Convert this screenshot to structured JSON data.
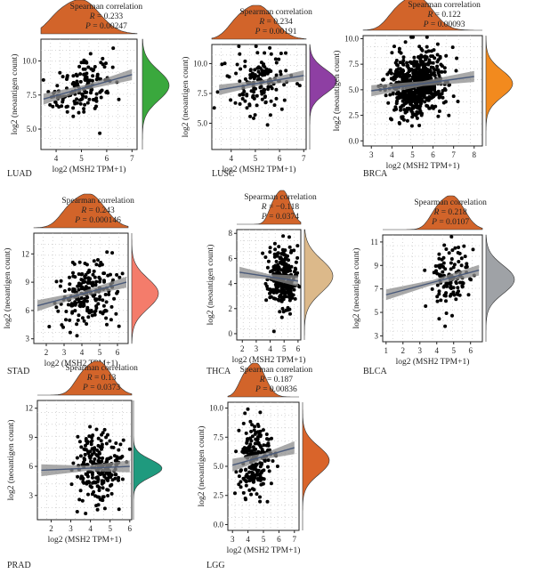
{
  "figure": {
    "stat_heading": "Spearman correlation",
    "r_prefix": "R = ",
    "p_prefix": "P = ",
    "x_axis_label": "log2 (MSH2 TPM+1)",
    "y_axis_label": "log2 (neoantigen count)"
  },
  "colors": {
    "top_density": "#d2642a",
    "scatter_point": "#000000",
    "regression_line": "#4a5a7a",
    "confidence_band": "#8c8c8c"
  },
  "chart_data": [
    {
      "type": "scatter",
      "panel_label": "LUAD",
      "R": "0.233",
      "P": "0.00247",
      "xlim": [
        3.4,
        7.2
      ],
      "ylim": [
        3.5,
        11.6
      ],
      "xticks": [
        4,
        5,
        6,
        7
      ],
      "yticks": [
        5.0,
        7.5,
        10.0
      ],
      "ytick_labels": [
        "5.0",
        "7.5",
        "10.0"
      ],
      "n_points": 160,
      "x_center": 5.0,
      "x_spread": 0.65,
      "regression": {
        "x": [
          3.5,
          7.0
        ],
        "y": [
          7.2,
          9.0
        ]
      },
      "right_density_color": "#3aa83d",
      "right_density_center": 8.2,
      "right_density_sd": 1.1
    },
    {
      "type": "scatter",
      "panel_label": "LUSC",
      "R": "0.234",
      "P": "0.00191",
      "xlim": [
        3.2,
        7.1
      ],
      "ylim": [
        2.8,
        11.6
      ],
      "xticks": [
        4,
        5,
        6,
        7
      ],
      "yticks": [
        5.0,
        7.5,
        10.0
      ],
      "ytick_labels": [
        "5.0",
        "7.5",
        "10.0"
      ],
      "n_points": 140,
      "x_center": 5.1,
      "x_spread": 0.6,
      "regression": {
        "x": [
          3.5,
          7.0
        ],
        "y": [
          7.8,
          9.0
        ]
      },
      "right_density_color": "#8e3fa3",
      "right_density_center": 8.5,
      "right_density_sd": 1.0
    },
    {
      "type": "scatter",
      "panel_label": "BRCA",
      "R": "0.122",
      "P": "0.00093",
      "xlim": [
        2.6,
        8.4
      ],
      "ylim": [
        -0.5,
        10.3
      ],
      "xticks": [
        3,
        4,
        5,
        6,
        7,
        8
      ],
      "yticks": [
        0.0,
        2.5,
        5.0,
        7.5,
        10.0
      ],
      "ytick_labels": [
        "0.0",
        "2.5",
        "5.0",
        "7.5",
        "10.0"
      ],
      "n_points": 650,
      "x_center": 5.2,
      "x_spread": 0.7,
      "regression": {
        "x": [
          3.0,
          8.0
        ],
        "y": [
          4.9,
          6.3
        ]
      },
      "right_density_color": "#f28a1e",
      "right_density_center": 5.6,
      "right_density_sd": 1.3
    },
    {
      "type": "scatter",
      "panel_label": "STAD",
      "R": "0.243",
      "P": "0.000146",
      "xlim": [
        1.3,
        6.6
      ],
      "ylim": [
        2.5,
        14.2
      ],
      "xticks": [
        2,
        3,
        4,
        5,
        6
      ],
      "yticks": [
        3,
        6,
        9,
        12
      ],
      "ytick_labels": [
        "3",
        "6",
        "9",
        "12"
      ],
      "n_points": 210,
      "x_center": 4.4,
      "x_spread": 0.8,
      "regression": {
        "x": [
          1.5,
          6.5
        ],
        "y": [
          6.5,
          9.0
        ]
      },
      "right_density_color": "#f47c6b",
      "right_density_center": 7.8,
      "right_density_sd": 1.6
    },
    {
      "type": "scatter",
      "panel_label": "THCA",
      "R": "−0.118",
      "P": "0.0374",
      "xlim": [
        1.6,
        6.2
      ],
      "ylim": [
        -0.5,
        8.3
      ],
      "xticks": [
        2,
        3,
        4,
        5,
        6
      ],
      "yticks": [
        0,
        2,
        4,
        6,
        8
      ],
      "ytick_labels": [
        "0",
        "2",
        "4",
        "6",
        "8"
      ],
      "n_points": 260,
      "x_center": 4.9,
      "x_spread": 0.5,
      "regression": {
        "x": [
          1.8,
          6.0
        ],
        "y": [
          4.9,
          4.2
        ]
      },
      "right_density_color": "#dcb98a",
      "right_density_center": 4.6,
      "right_density_sd": 1.3
    },
    {
      "type": "scatter",
      "panel_label": "BLCA",
      "R": "0.218",
      "P": "0.0107",
      "xlim": [
        0.8,
        6.7
      ],
      "ylim": [
        2.5,
        11.6
      ],
      "xticks": [
        1,
        2,
        3,
        4,
        5,
        6
      ],
      "yticks": [
        3,
        5,
        7,
        9,
        11
      ],
      "ytick_labels": [
        "3",
        "5",
        "7",
        "9",
        "11"
      ],
      "n_points": 120,
      "x_center": 4.9,
      "x_spread": 0.65,
      "regression": {
        "x": [
          1.0,
          6.5
        ],
        "y": [
          6.5,
          8.6
        ]
      },
      "right_density_color": "#9fa2a6",
      "right_density_center": 7.8,
      "right_density_sd": 1.2
    },
    {
      "type": "scatter",
      "panel_label": "PRAD",
      "R": "0.13",
      "P": "0.0373",
      "xlim": [
        1.3,
        6.1
      ],
      "ylim": [
        0.5,
        12.8
      ],
      "xticks": [
        2,
        3,
        4,
        5,
        6
      ],
      "yticks": [
        3,
        6,
        9,
        12
      ],
      "ytick_labels": [
        "3",
        "6",
        "9",
        "12"
      ],
      "n_points": 230,
      "x_center": 4.4,
      "x_spread": 0.6,
      "regression": {
        "x": [
          1.5,
          6.0
        ],
        "y": [
          5.6,
          6.0
        ]
      },
      "right_density_color": "#1f9a7e",
      "right_density_center": 5.8,
      "right_density_sd": 0.9
    },
    {
      "type": "scatter",
      "panel_label": "LGG",
      "R": "0.187",
      "P": "0.00836",
      "xlim": [
        2.7,
        7.3
      ],
      "ylim": [
        -0.5,
        10.5
      ],
      "xticks": [
        3,
        4,
        5,
        6,
        7
      ],
      "yticks": [
        0.0,
        2.5,
        5.0,
        7.5,
        10.0
      ],
      "ytick_labels": [
        "0.0",
        "2.5",
        "5.0",
        "7.5",
        "10.0"
      ],
      "n_points": 200,
      "x_center": 4.5,
      "x_spread": 0.55,
      "regression": {
        "x": [
          3.0,
          7.0
        ],
        "y": [
          5.1,
          6.6
        ]
      },
      "right_density_color": "#d9642a",
      "right_density_center": 5.5,
      "right_density_sd": 1.2
    }
  ]
}
